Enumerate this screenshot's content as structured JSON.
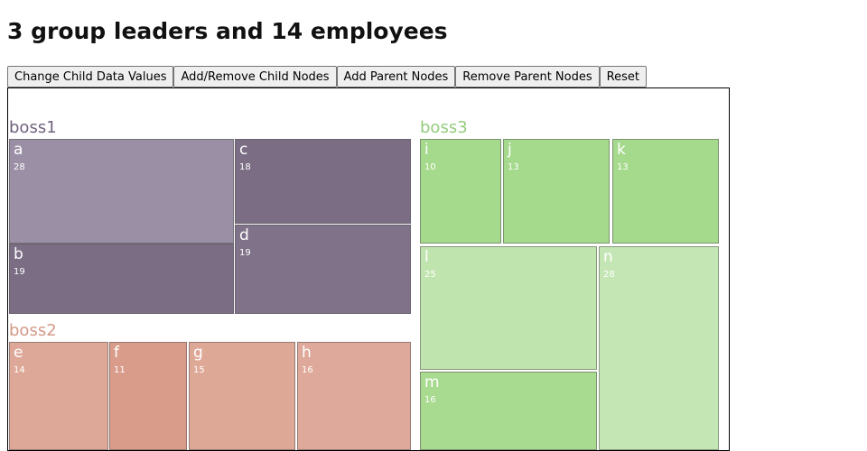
{
  "page": {
    "title": "3 group leaders and 14 employees"
  },
  "toolbar": {
    "buttons": [
      {
        "id": "change-child-data-values",
        "label": "Change Child Data Values"
      },
      {
        "id": "add-remove-child-nodes",
        "label": "Add/Remove Child Nodes"
      },
      {
        "id": "add-parent-nodes",
        "label": "Add Parent Nodes"
      },
      {
        "id": "remove-parent-nodes",
        "label": "Remove Parent Nodes"
      },
      {
        "id": "reset",
        "label": "Reset"
      }
    ]
  },
  "treemap": {
    "groups": [
      {
        "name": "boss1",
        "label_color": "#6f627d",
        "children": [
          {
            "name": "a",
            "value": 28,
            "color": "#9a8fa4"
          },
          {
            "name": "b",
            "value": 19,
            "color": "#7a6d84"
          },
          {
            "name": "c",
            "value": 18,
            "color": "#7a6d84"
          },
          {
            "name": "d",
            "value": 19,
            "color": "#7f7289"
          }
        ]
      },
      {
        "name": "boss2",
        "label_color": "#d49a87",
        "children": [
          {
            "name": "e",
            "value": 14,
            "color": "#dda898"
          },
          {
            "name": "f",
            "value": 11,
            "color": "#d99c8a"
          },
          {
            "name": "g",
            "value": 15,
            "color": "#dea897"
          },
          {
            "name": "h",
            "value": 16,
            "color": "#dea99a"
          }
        ]
      },
      {
        "name": "boss3",
        "label_color": "#94cc7e",
        "children": [
          {
            "name": "i",
            "value": 10,
            "color": "#a5d98c"
          },
          {
            "name": "j",
            "value": 13,
            "color": "#a5d98c"
          },
          {
            "name": "k",
            "value": 13,
            "color": "#a5d98c"
          },
          {
            "name": "l",
            "value": 25,
            "color": "#c0e4ae"
          },
          {
            "name": "m",
            "value": 16,
            "color": "#a8da8f"
          },
          {
            "name": "n",
            "value": 28,
            "color": "#c4e6b4"
          }
        ]
      }
    ]
  }
}
